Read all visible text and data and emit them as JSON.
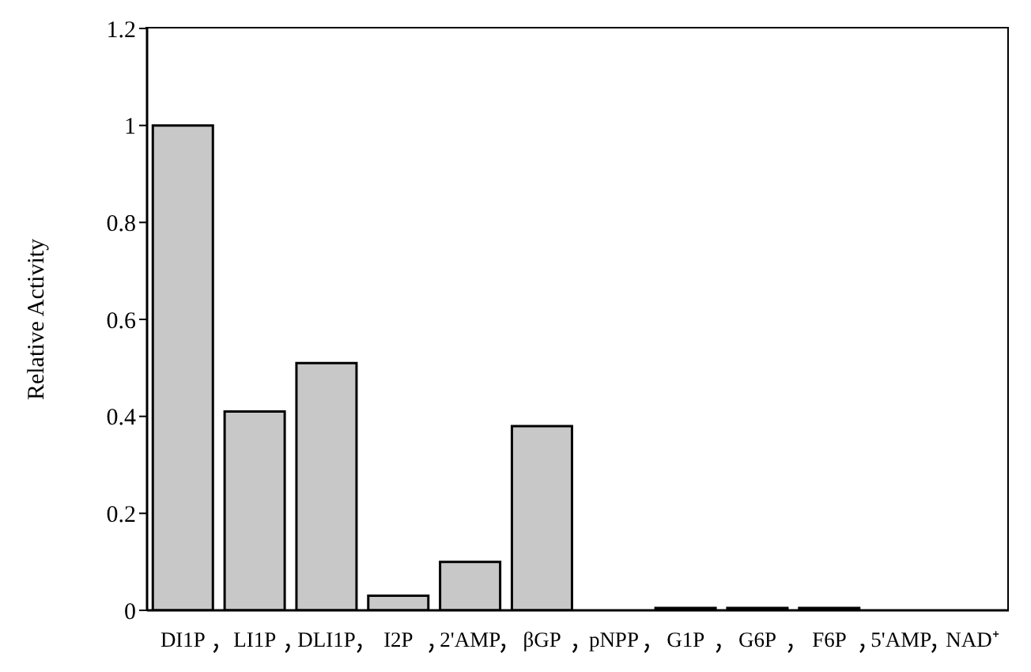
{
  "chart_data": {
    "type": "bar",
    "ylabel": "Relative Activity",
    "categories": [
      "DI1P",
      "LI1P",
      "DLI1P",
      "I2P",
      "2'AMP",
      "βGP",
      "pNPP",
      "G1P",
      "G6P",
      "F6P",
      "5'AMP",
      "NAD⁺"
    ],
    "values": [
      1.0,
      0.41,
      0.51,
      0.03,
      0.1,
      0.38,
      0,
      0.005,
      0.005,
      0.005,
      0,
      0
    ],
    "color": "#c8c8c8",
    "ylim": [
      0,
      1.2
    ],
    "yticks": [
      0,
      0.2,
      0.4,
      0.6,
      0.8,
      1,
      1.2
    ],
    "grid": false,
    "legend": false
  }
}
